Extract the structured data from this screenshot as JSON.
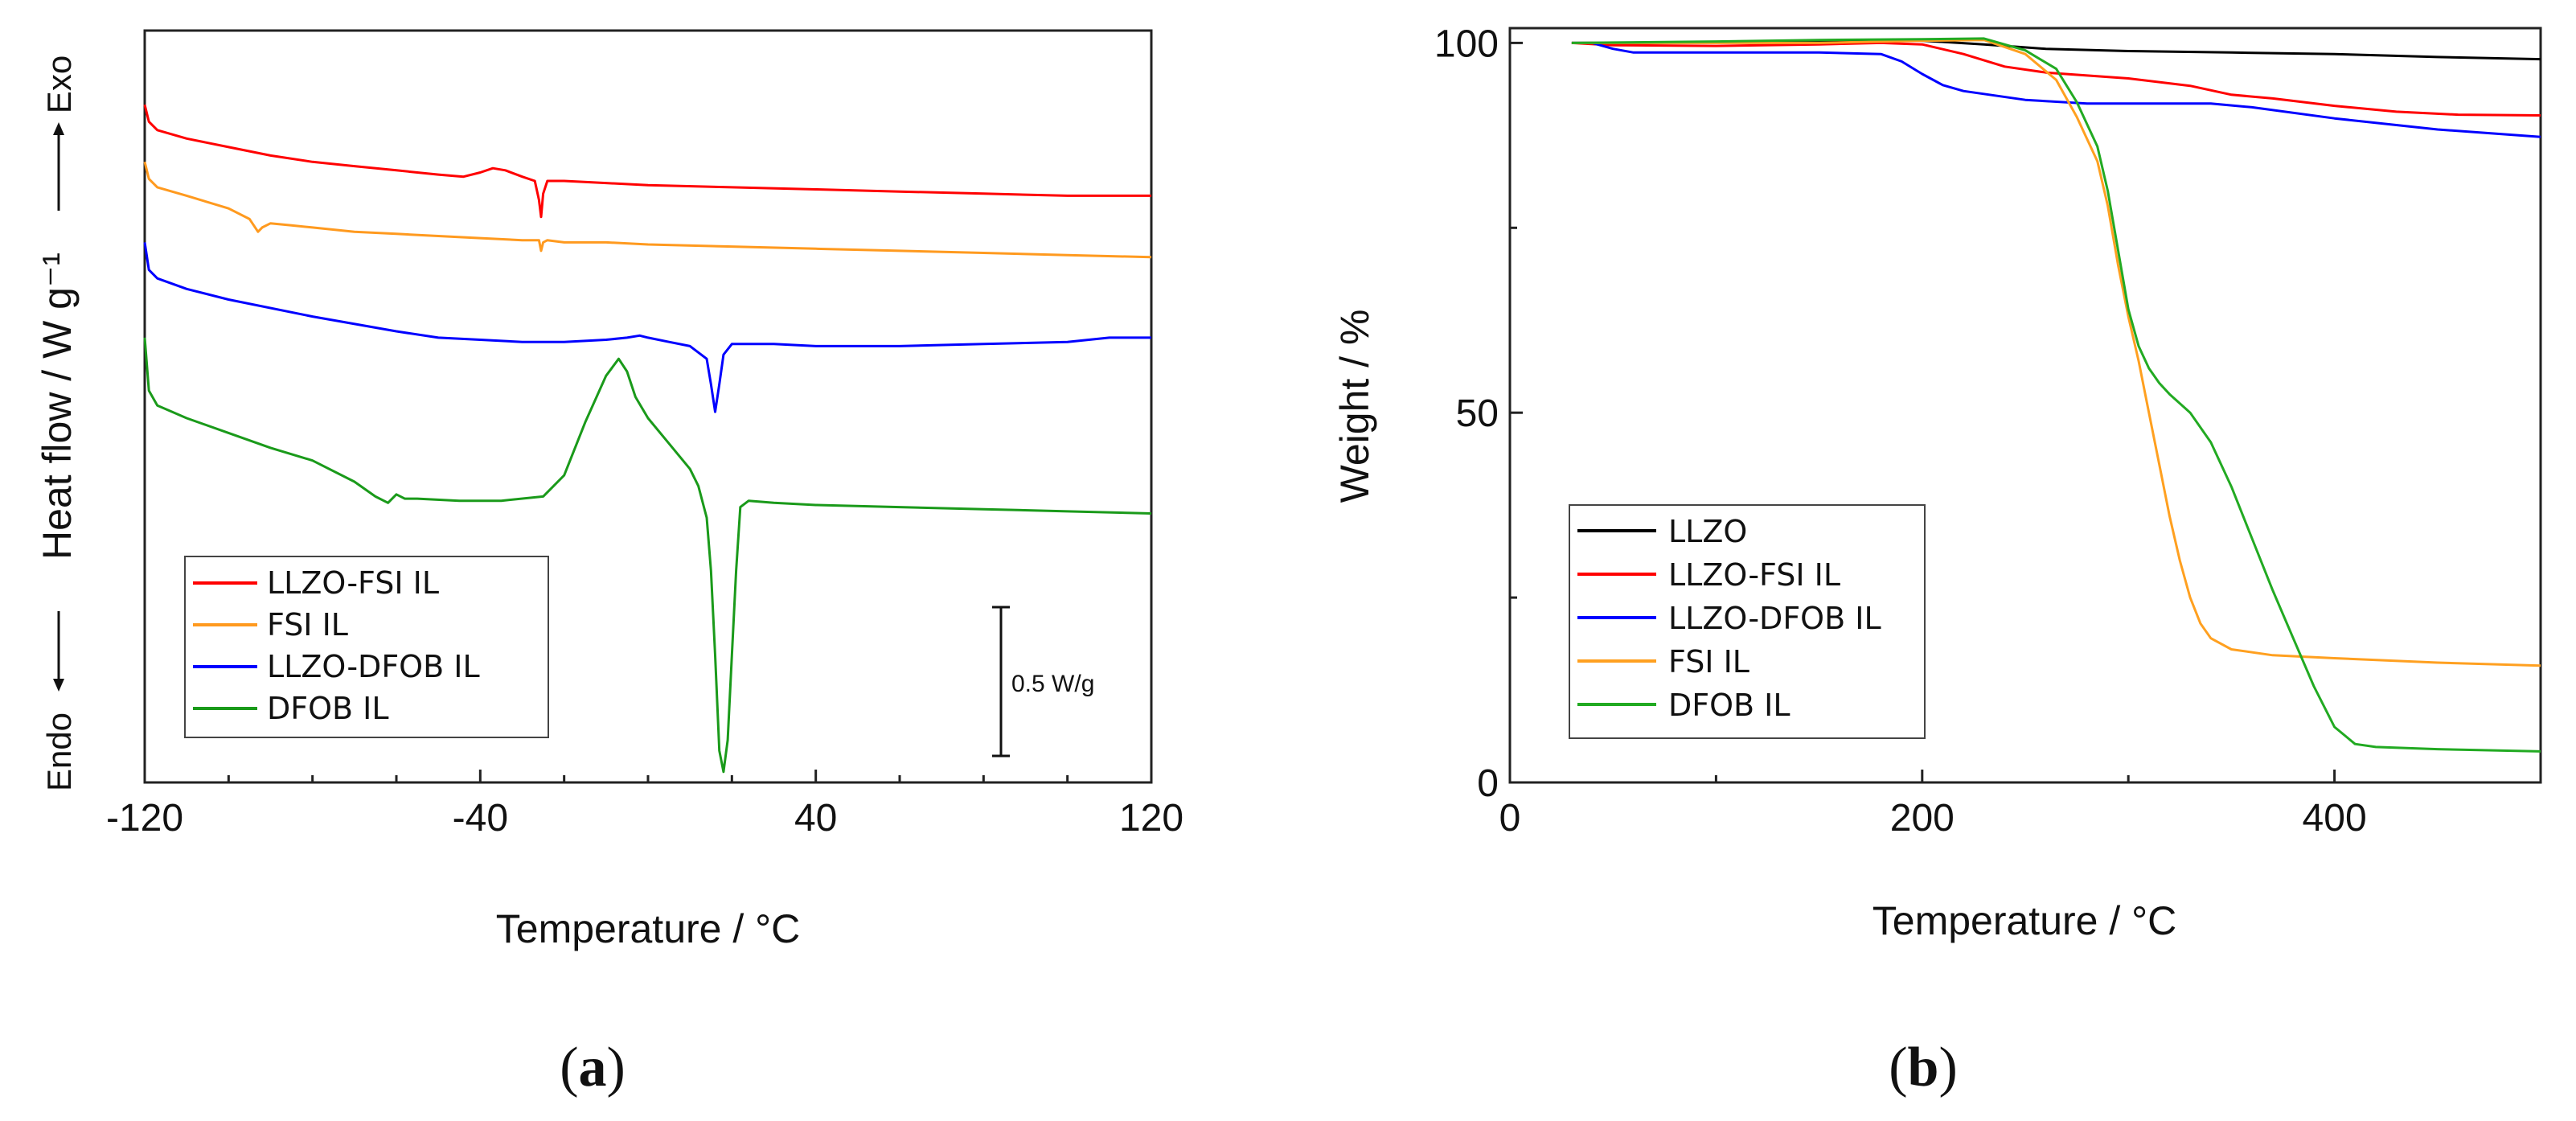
{
  "chart_data": [
    {
      "type": "line",
      "panel": "a",
      "xlabel": "Temperature / °C",
      "ylabel": "Heat flow / W g⁻¹",
      "xlim": [
        -120,
        120
      ],
      "xticks": [
        "-120",
        "-40",
        "40",
        "120"
      ],
      "y_arrow_up": "Exo",
      "y_arrow_down": "Endo",
      "scale_bar_label": "0.5 W/g",
      "scale_bar_value": 0.5,
      "ylim": [
        -3.2,
        0.35
      ],
      "legend_location": "lower-left",
      "series": [
        {
          "name": "LLZO-FSI IL",
          "color": "#ff0000",
          "x": [
            -120,
            -119,
            -117,
            -110,
            -100,
            -90,
            -80,
            -70,
            -60,
            -50,
            -44,
            -40,
            -37,
            -34,
            -30,
            -27,
            -26,
            -25.5,
            -25,
            -24,
            -20,
            -10,
            0,
            20,
            40,
            60,
            80,
            100,
            120
          ],
          "y": [
            0.0,
            -0.08,
            -0.12,
            -0.16,
            -0.2,
            -0.24,
            -0.27,
            -0.29,
            -0.31,
            -0.33,
            -0.34,
            -0.32,
            -0.3,
            -0.31,
            -0.34,
            -0.36,
            -0.45,
            -0.53,
            -0.42,
            -0.36,
            -0.36,
            -0.37,
            -0.38,
            -0.39,
            -0.4,
            -0.41,
            -0.42,
            -0.43,
            -0.43
          ]
        },
        {
          "name": "FSI IL",
          "color": "#ff9a1f",
          "x": [
            -120,
            -119,
            -117,
            -110,
            -100,
            -95,
            -93,
            -92,
            -90,
            -85,
            -80,
            -70,
            -60,
            -50,
            -40,
            -30,
            -26,
            -25.5,
            -25,
            -24,
            -20,
            -10,
            0,
            20,
            40,
            60,
            80,
            100,
            120
          ],
          "y": [
            -0.27,
            -0.35,
            -0.39,
            -0.43,
            -0.49,
            -0.54,
            -0.6,
            -0.58,
            -0.56,
            -0.57,
            -0.58,
            -0.6,
            -0.61,
            -0.62,
            -0.63,
            -0.64,
            -0.64,
            -0.69,
            -0.65,
            -0.64,
            -0.65,
            -0.65,
            -0.66,
            -0.67,
            -0.68,
            -0.69,
            -0.7,
            -0.71,
            -0.72
          ]
        },
        {
          "name": "LLZO-DFOB IL",
          "color": "#0000ff",
          "x": [
            -120,
            -119,
            -117,
            -110,
            -100,
            -80,
            -60,
            -50,
            -40,
            -30,
            -20,
            -10,
            -5,
            -2,
            0,
            5,
            10,
            14,
            15,
            16,
            17,
            18,
            20,
            30,
            40,
            60,
            80,
            100,
            110,
            120
          ],
          "y": [
            -0.65,
            -0.78,
            -0.82,
            -0.87,
            -0.92,
            -1.0,
            -1.07,
            -1.1,
            -1.11,
            -1.12,
            -1.12,
            -1.11,
            -1.1,
            -1.09,
            -1.1,
            -1.12,
            -1.14,
            -1.2,
            -1.32,
            -1.45,
            -1.32,
            -1.18,
            -1.13,
            -1.13,
            -1.14,
            -1.14,
            -1.13,
            -1.12,
            -1.1,
            -1.1
          ]
        },
        {
          "name": "DFOB IL",
          "color": "#1a9a1a",
          "x": [
            -120,
            -119,
            -117,
            -110,
            -100,
            -90,
            -80,
            -70,
            -65,
            -62,
            -60,
            -58,
            -55,
            -45,
            -35,
            -25,
            -20,
            -15,
            -10,
            -7,
            -5,
            -3,
            0,
            5,
            10,
            12,
            14,
            15,
            16,
            17,
            18,
            19,
            20,
            21,
            22,
            24,
            30,
            40,
            60,
            80,
            100,
            120
          ],
          "y": [
            -1.1,
            -1.35,
            -1.42,
            -1.48,
            -1.55,
            -1.62,
            -1.68,
            -1.78,
            -1.85,
            -1.88,
            -1.84,
            -1.86,
            -1.86,
            -1.87,
            -1.87,
            -1.85,
            -1.75,
            -1.5,
            -1.28,
            -1.2,
            -1.26,
            -1.38,
            -1.48,
            -1.6,
            -1.72,
            -1.8,
            -1.95,
            -2.2,
            -2.6,
            -3.05,
            -3.15,
            -3.0,
            -2.6,
            -2.2,
            -1.9,
            -1.87,
            -1.88,
            -1.89,
            -1.9,
            -1.91,
            -1.92,
            -1.93
          ]
        }
      ]
    },
    {
      "type": "line",
      "panel": "b",
      "xlabel": "Temperature / °C",
      "ylabel": "Weight / %",
      "xlim": [
        0,
        500
      ],
      "ylim": [
        0,
        102
      ],
      "xticks": [
        0,
        200,
        400
      ],
      "yticks": [
        0,
        50,
        100
      ],
      "legend_location": "lower-left",
      "series": [
        {
          "name": "LLZO",
          "color": "#000000",
          "x": [
            30,
            60,
            100,
            150,
            180,
            200,
            230,
            260,
            300,
            350,
            400,
            450,
            500
          ],
          "y": [
            100,
            100,
            100.1,
            100.2,
            100.4,
            100.3,
            99.8,
            99.2,
            98.9,
            98.7,
            98.5,
            98.1,
            97.8
          ]
        },
        {
          "name": "LLZO-FSI IL",
          "color": "#ff0000",
          "x": [
            30,
            50,
            100,
            150,
            180,
            200,
            220,
            240,
            260,
            300,
            330,
            350,
            370,
            400,
            430,
            460,
            500
          ],
          "y": [
            100,
            99.7,
            99.6,
            99.8,
            100,
            99.8,
            98.5,
            96.8,
            96,
            95.2,
            94.2,
            93,
            92.5,
            91.5,
            90.7,
            90.3,
            90.2
          ]
        },
        {
          "name": "LLZO-DFOB IL",
          "color": "#0000ff",
          "x": [
            30,
            40,
            50,
            60,
            100,
            150,
            180,
            190,
            200,
            210,
            220,
            250,
            280,
            300,
            340,
            360,
            400,
            450,
            500
          ],
          "y": [
            100,
            100,
            99.2,
            98.7,
            98.7,
            98.7,
            98.5,
            97.5,
            95.8,
            94.3,
            93.5,
            92.3,
            91.8,
            91.8,
            91.8,
            91.3,
            89.8,
            88.3,
            87.3
          ]
        },
        {
          "name": "FSI IL",
          "color": "#ffa020",
          "x": [
            30,
            100,
            150,
            200,
            230,
            250,
            265,
            275,
            285,
            290,
            295,
            300,
            305,
            310,
            315,
            320,
            325,
            330,
            335,
            340,
            350,
            370,
            400,
            450,
            500
          ],
          "y": [
            100,
            100,
            100,
            100.3,
            100.4,
            98.5,
            95,
            90,
            84,
            78,
            70,
            63,
            57,
            50,
            43,
            36,
            30,
            25,
            21.5,
            19.5,
            18,
            17.2,
            16.8,
            16.2,
            15.8
          ]
        },
        {
          "name": "DFOB IL",
          "color": "#22aa22",
          "x": [
            30,
            100,
            150,
            200,
            230,
            250,
            265,
            275,
            285,
            290,
            295,
            300,
            305,
            310,
            315,
            320,
            330,
            340,
            350,
            360,
            370,
            380,
            390,
            400,
            410,
            420,
            450,
            500
          ],
          "y": [
            100,
            100.2,
            100.4,
            100.5,
            100.6,
            99,
            96.5,
            92,
            86,
            80,
            72,
            64,
            59,
            56,
            54,
            52.5,
            50,
            46,
            40,
            33,
            26,
            19.5,
            13,
            7.5,
            5.2,
            4.8,
            4.5,
            4.2
          ]
        }
      ]
    }
  ],
  "panel_labels": {
    "a": "(a)",
    "a_letter": "a",
    "b": "(b)",
    "b_letter": "b"
  },
  "symbols": {
    "open": "(",
    "close": ")"
  }
}
